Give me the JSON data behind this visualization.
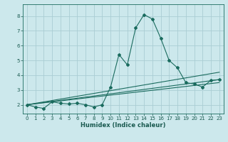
{
  "xlabel": "Humidex (Indice chaleur)",
  "ylabel": "",
  "bg_color": "#cce8ec",
  "grid_color": "#aacdd4",
  "line_color": "#1a6b5e",
  "xlim": [
    -0.5,
    23.5
  ],
  "ylim": [
    1.4,
    8.8
  ],
  "xticks": [
    0,
    1,
    2,
    3,
    4,
    5,
    6,
    7,
    8,
    9,
    10,
    11,
    12,
    13,
    14,
    15,
    16,
    17,
    18,
    19,
    20,
    21,
    22,
    23
  ],
  "yticks": [
    2,
    3,
    4,
    5,
    6,
    7,
    8
  ],
  "series": [
    {
      "x": [
        0,
        1,
        2,
        3,
        4,
        5,
        6,
        7,
        8,
        9,
        10,
        11,
        12,
        13,
        14,
        15,
        16,
        17,
        18,
        19,
        20,
        21,
        22,
        23
      ],
      "y": [
        2.0,
        1.85,
        1.75,
        2.2,
        2.1,
        2.05,
        2.1,
        2.0,
        1.85,
        2.0,
        3.2,
        5.4,
        4.7,
        7.2,
        8.1,
        7.8,
        6.5,
        5.0,
        4.5,
        3.5,
        3.4,
        3.2,
        3.65,
        3.7
      ]
    },
    {
      "x": [
        0,
        23
      ],
      "y": [
        2.0,
        3.5
      ]
    },
    {
      "x": [
        0,
        23
      ],
      "y": [
        2.0,
        3.7
      ]
    },
    {
      "x": [
        0,
        23
      ],
      "y": [
        2.0,
        4.2
      ]
    }
  ]
}
